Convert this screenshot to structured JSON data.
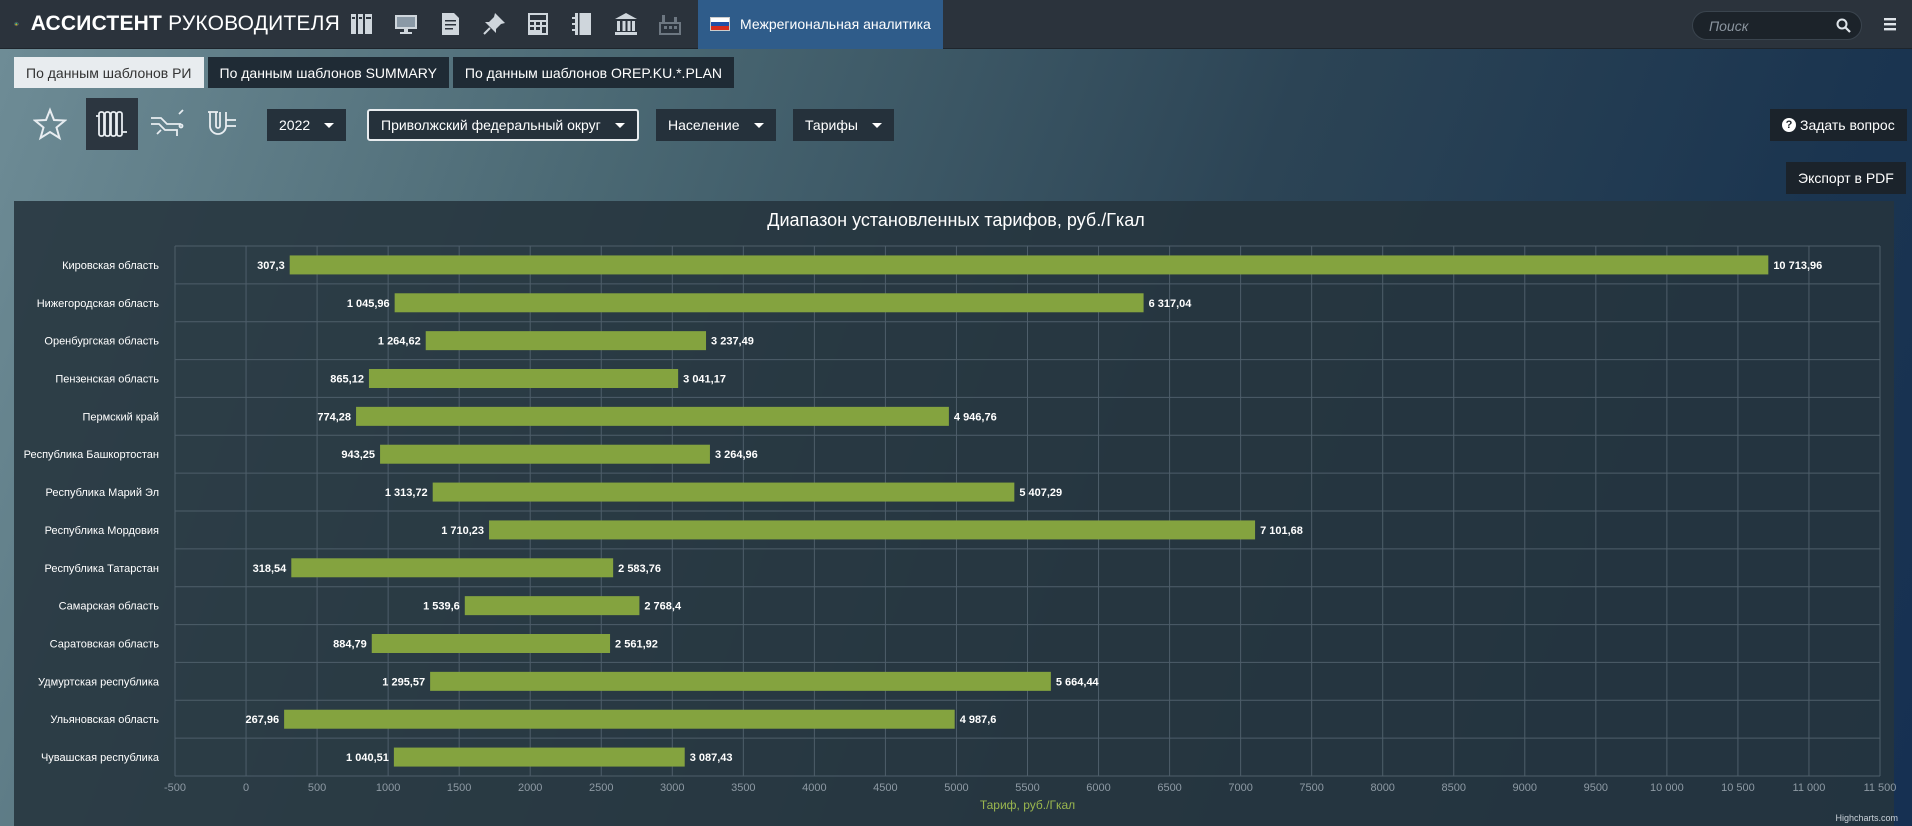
{
  "app": {
    "title_bold": "АССИСТЕНТ",
    "title_regular": "РУКОВОДИТЕЛЯ",
    "active_section": "Межрегиональная аналитика"
  },
  "nav_icons": [
    "library-icon",
    "monitor-icon",
    "document-icon",
    "pin-icon",
    "calculator-icon",
    "notebook-icon",
    "bank-icon",
    "factory-icon"
  ],
  "search": {
    "placeholder": "Поиск"
  },
  "tabs": [
    {
      "label": "По данным шаблонов РИ",
      "active": true
    },
    {
      "label": "По данным шаблонов SUMMARY",
      "active": false
    },
    {
      "label": "По данным шаблонов OREP.KU.*.PLAN",
      "active": false
    }
  ],
  "filters": {
    "year": "2022",
    "district": "Приволжский федеральный округ",
    "consumer": "Население",
    "metric": "Тарифы"
  },
  "actions": {
    "ask": "Задать вопрос",
    "export": "Экспорт в PDF"
  },
  "colors": {
    "bar": "#84a33f",
    "accent": "#2f5c8a",
    "axis_title": "#9ab64e"
  },
  "chart_data": {
    "type": "bar",
    "orientation": "horizontal",
    "variant": "range",
    "title": "Диапазон установленных тарифов, руб./Гкал",
    "xlabel": "Тариф, руб./Гкал",
    "xlim": [
      -500,
      11500
    ],
    "xtick_step": 500,
    "xtick_labels": [
      "-500",
      "0",
      "500",
      "1000",
      "1500",
      "2000",
      "2500",
      "3000",
      "3500",
      "4000",
      "4500",
      "5000",
      "5500",
      "6000",
      "6500",
      "7000",
      "7500",
      "8000",
      "8500",
      "9000",
      "9500",
      "10 000",
      "10 500",
      "11 000",
      "11 500"
    ],
    "grid": true,
    "categories": [
      "Кировская область",
      "Нижегородская область",
      "Оренбургская область",
      "Пензенская область",
      "Пермский край",
      "Республика Башкортостан",
      "Республика Марий Эл",
      "Республика Мордовия",
      "Республика Татарстан",
      "Самарская область",
      "Саратовская область",
      "Удмуртская республика",
      "Ульяновская область",
      "Чувашская республика"
    ],
    "low": [
      307.3,
      1045.96,
      1264.62,
      865.12,
      774.28,
      943.25,
      1313.72,
      1710.23,
      318.54,
      1539.6,
      884.79,
      1295.57,
      267.96,
      1040.51
    ],
    "high": [
      10713.96,
      6317.04,
      3237.49,
      3041.17,
      4946.76,
      3264.96,
      5407.29,
      7101.68,
      2583.76,
      2768.4,
      2561.92,
      5664.44,
      4987.6,
      3087.43
    ],
    "low_labels": [
      "307,3",
      "1 045,96",
      "1 264,62",
      "865,12",
      "774,28",
      "943,25",
      "1 313,72",
      "1 710,23",
      "318,54",
      "1 539,6",
      "884,79",
      "1 295,57",
      "267,96",
      "1 040,51"
    ],
    "high_labels": [
      "10 713,96",
      "6 317,04",
      "3 237,49",
      "3 041,17",
      "4 946,76",
      "3 264,96",
      "5 407,29",
      "7 101,68",
      "2 583,76",
      "2 768,4",
      "2 561,92",
      "5 664,44",
      "4 987,6",
      "3 087,43"
    ],
    "credits": "Highcharts.com"
  }
}
